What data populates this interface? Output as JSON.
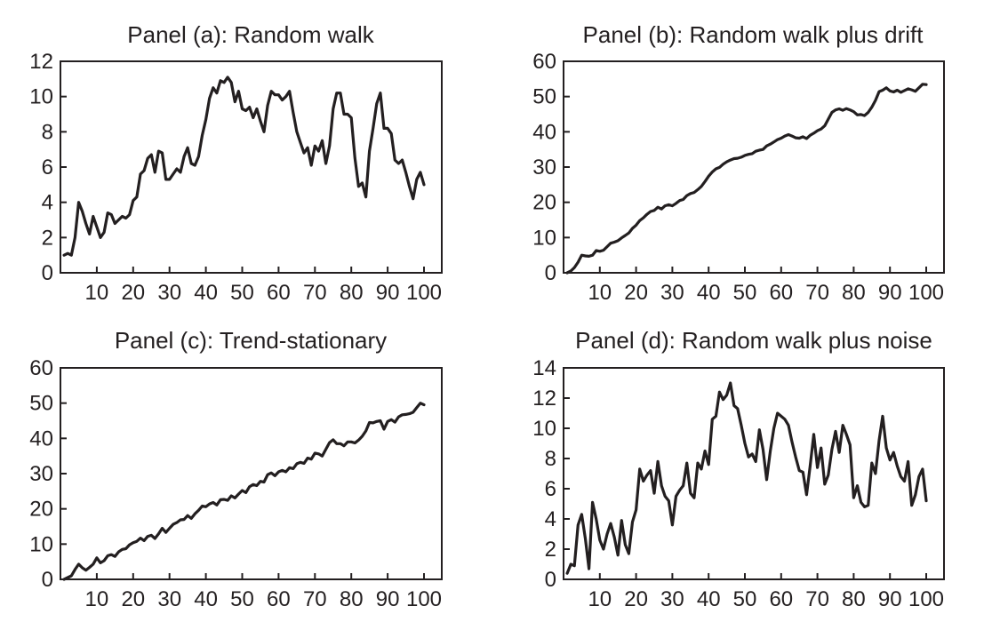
{
  "chart_data": [
    {
      "type": "line",
      "title": "Panel (a): Random walk",
      "xlabel": "",
      "ylabel": "",
      "xlim": [
        0,
        100
      ],
      "ylim": [
        0,
        12
      ],
      "xticks": [
        10,
        20,
        30,
        40,
        50,
        60,
        70,
        80,
        90,
        100
      ],
      "yticks": [
        0,
        2,
        4,
        6,
        8,
        10,
        12
      ],
      "grid": false,
      "x": [
        1,
        2,
        3,
        4,
        5,
        6,
        7,
        8,
        9,
        10,
        11,
        12,
        13,
        14,
        15,
        16,
        17,
        18,
        19,
        20,
        21,
        22,
        23,
        24,
        25,
        26,
        27,
        28,
        29,
        30,
        31,
        32,
        33,
        34,
        35,
        36,
        37,
        38,
        39,
        40,
        41,
        42,
        43,
        44,
        45,
        46,
        47,
        48,
        49,
        50,
        51,
        52,
        53,
        54,
        55,
        56,
        57,
        58,
        59,
        60,
        61,
        62,
        63,
        64,
        65,
        66,
        67,
        68,
        69,
        70,
        71,
        72,
        73,
        74,
        75,
        76,
        77,
        78,
        79,
        80,
        81,
        82,
        83,
        84,
        85,
        86,
        87,
        88,
        89,
        90,
        91,
        92,
        93,
        94,
        95,
        96,
        97,
        98,
        99,
        100
      ],
      "series": [
        {
          "values": [
            1.0,
            1.1,
            1.0,
            2.0,
            4.0,
            3.5,
            2.8,
            2.2,
            3.2,
            2.6,
            2.0,
            2.3,
            3.4,
            3.3,
            2.8,
            3.0,
            3.2,
            3.1,
            3.3,
            4.1,
            4.3,
            5.6,
            5.8,
            6.5,
            6.7,
            5.7,
            6.9,
            6.8,
            5.3,
            5.3,
            5.6,
            5.9,
            5.7,
            6.6,
            7.1,
            6.2,
            6.1,
            6.6,
            7.8,
            8.7,
            9.9,
            10.5,
            10.2,
            10.9,
            10.8,
            11.1,
            10.8,
            9.7,
            10.3,
            9.3,
            9.2,
            9.4,
            8.8,
            9.3,
            8.6,
            8.0,
            9.5,
            10.3,
            10.1,
            10.1,
            9.8,
            10.0,
            10.3,
            9.1,
            8.0,
            7.4,
            6.8,
            7.1,
            6.1,
            7.2,
            6.9,
            7.5,
            6.2,
            7.2,
            9.3,
            10.2,
            10.2,
            9.0,
            9.0,
            8.8,
            6.5,
            4.9,
            5.1,
            4.3,
            6.9,
            8.2,
            9.6,
            10.2,
            8.2,
            8.2,
            7.9,
            6.4,
            6.2,
            6.4,
            5.7,
            4.9,
            4.2,
            5.3,
            5.7,
            5.0
          ]
        }
      ]
    },
    {
      "type": "line",
      "title": "Panel (b): Random walk plus drift",
      "xlabel": "",
      "ylabel": "",
      "xlim": [
        0,
        100
      ],
      "ylim": [
        0,
        60
      ],
      "xticks": [
        10,
        20,
        30,
        40,
        50,
        60,
        70,
        80,
        90,
        100
      ],
      "yticks": [
        0,
        10,
        20,
        30,
        40,
        50,
        60
      ],
      "grid": false,
      "x": [
        1,
        2,
        3,
        4,
        5,
        6,
        7,
        8,
        9,
        10,
        11,
        12,
        13,
        14,
        15,
        16,
        17,
        18,
        19,
        20,
        21,
        22,
        23,
        24,
        25,
        26,
        27,
        28,
        29,
        30,
        31,
        32,
        33,
        34,
        35,
        36,
        37,
        38,
        39,
        40,
        41,
        42,
        43,
        44,
        45,
        46,
        47,
        48,
        49,
        50,
        51,
        52,
        53,
        54,
        55,
        56,
        57,
        58,
        59,
        60,
        61,
        62,
        63,
        64,
        65,
        66,
        67,
        68,
        69,
        70,
        71,
        72,
        73,
        74,
        75,
        76,
        77,
        78,
        79,
        80,
        81,
        82,
        83,
        84,
        85,
        86,
        87,
        88,
        89,
        90,
        91,
        92,
        93,
        94,
        95,
        96,
        97,
        98,
        99,
        100
      ],
      "series": [
        {
          "values": [
            0.0,
            0.5,
            1.5,
            3.0,
            5.0,
            4.8,
            4.7,
            5.0,
            6.3,
            6.1,
            6.4,
            7.4,
            8.4,
            8.7,
            9.1,
            9.9,
            10.6,
            11.3,
            12.6,
            13.5,
            14.8,
            15.6,
            16.6,
            17.4,
            17.7,
            18.6,
            18.1,
            19.0,
            19.3,
            19.0,
            19.7,
            20.5,
            20.8,
            21.9,
            22.5,
            22.8,
            23.6,
            24.5,
            25.9,
            27.4,
            28.6,
            29.5,
            29.9,
            30.8,
            31.5,
            32.0,
            32.4,
            32.5,
            32.8,
            33.3,
            33.6,
            33.8,
            34.5,
            34.8,
            35.0,
            36.0,
            36.5,
            37.1,
            37.8,
            38.2,
            38.8,
            39.2,
            38.8,
            38.3,
            38.2,
            38.6,
            38.1,
            39.0,
            39.6,
            40.3,
            40.8,
            41.7,
            43.6,
            45.5,
            46.2,
            46.5,
            46.1,
            46.6,
            46.2,
            45.7,
            44.8,
            44.9,
            44.6,
            45.5,
            47.0,
            48.9,
            51.4,
            51.8,
            52.5,
            51.6,
            51.3,
            51.8,
            51.2,
            51.7,
            52.2,
            51.9,
            51.5,
            52.5,
            53.5,
            53.4
          ]
        }
      ]
    },
    {
      "type": "line",
      "title": "Panel (c): Trend-stationary",
      "xlabel": "",
      "ylabel": "",
      "xlim": [
        0,
        100
      ],
      "ylim": [
        0,
        60
      ],
      "xticks": [
        10,
        20,
        30,
        40,
        50,
        60,
        70,
        80,
        90,
        100
      ],
      "yticks": [
        0,
        10,
        20,
        30,
        40,
        50,
        60
      ],
      "grid": false,
      "x": [
        1,
        2,
        3,
        4,
        5,
        6,
        7,
        8,
        9,
        10,
        11,
        12,
        13,
        14,
        15,
        16,
        17,
        18,
        19,
        20,
        21,
        22,
        23,
        24,
        25,
        26,
        27,
        28,
        29,
        30,
        31,
        32,
        33,
        34,
        35,
        36,
        37,
        38,
        39,
        40,
        41,
        42,
        43,
        44,
        45,
        46,
        47,
        48,
        49,
        50,
        51,
        52,
        53,
        54,
        55,
        56,
        57,
        58,
        59,
        60,
        61,
        62,
        63,
        64,
        65,
        66,
        67,
        68,
        69,
        70,
        71,
        72,
        73,
        74,
        75,
        76,
        77,
        78,
        79,
        80,
        81,
        82,
        83,
        84,
        85,
        86,
        87,
        88,
        89,
        90,
        91,
        92,
        93,
        94,
        95,
        96,
        97,
        98,
        99,
        100
      ],
      "series": [
        {
          "values": [
            0.0,
            0.5,
            1.0,
            2.8,
            4.3,
            3.3,
            2.6,
            3.4,
            4.3,
            6.1,
            4.7,
            5.3,
            6.7,
            7.0,
            6.5,
            7.8,
            8.5,
            8.7,
            9.8,
            10.4,
            10.8,
            11.7,
            11.0,
            12.2,
            12.5,
            11.6,
            12.9,
            14.5,
            13.3,
            14.5,
            15.6,
            16.1,
            16.9,
            17.0,
            18.1,
            17.3,
            18.6,
            19.6,
            20.8,
            20.6,
            21.4,
            21.8,
            21.1,
            22.6,
            22.7,
            22.4,
            23.7,
            23.1,
            24.2,
            25.2,
            24.6,
            26.3,
            26.9,
            26.6,
            27.8,
            27.6,
            29.7,
            30.2,
            29.4,
            30.5,
            30.9,
            30.5,
            31.7,
            31.4,
            32.8,
            33.2,
            32.9,
            34.4,
            34.1,
            35.8,
            35.6,
            35.0,
            36.9,
            38.8,
            39.6,
            38.5,
            38.5,
            37.9,
            39.0,
            39.0,
            38.7,
            39.5,
            40.6,
            42.1,
            44.5,
            44.4,
            44.8,
            45.0,
            42.6,
            44.8,
            45.3,
            44.6,
            46.1,
            46.7,
            46.8,
            47.0,
            47.4,
            48.7,
            50.0,
            49.5
          ]
        }
      ]
    },
    {
      "type": "line",
      "title": "Panel (d): Random walk plus noise",
      "xlabel": "",
      "ylabel": "",
      "xlim": [
        0,
        100
      ],
      "ylim": [
        0,
        14
      ],
      "xticks": [
        10,
        20,
        30,
        40,
        50,
        60,
        70,
        80,
        90,
        100
      ],
      "yticks": [
        0,
        2,
        4,
        6,
        8,
        10,
        12,
        14
      ],
      "grid": false,
      "x": [
        1,
        2,
        3,
        4,
        5,
        6,
        7,
        8,
        9,
        10,
        11,
        12,
        13,
        14,
        15,
        16,
        17,
        18,
        19,
        20,
        21,
        22,
        23,
        24,
        25,
        26,
        27,
        28,
        29,
        30,
        31,
        32,
        33,
        34,
        35,
        36,
        37,
        38,
        39,
        40,
        41,
        42,
        43,
        44,
        45,
        46,
        47,
        48,
        49,
        50,
        51,
        52,
        53,
        54,
        55,
        56,
        57,
        58,
        59,
        60,
        61,
        62,
        63,
        64,
        65,
        66,
        67,
        68,
        69,
        70,
        71,
        72,
        73,
        74,
        75,
        76,
        77,
        78,
        79,
        80,
        81,
        82,
        83,
        84,
        85,
        86,
        87,
        88,
        89,
        90,
        91,
        92,
        93,
        94,
        95,
        96,
        97,
        98,
        99,
        100
      ],
      "series": [
        {
          "values": [
            0.4,
            1.0,
            0.9,
            3.6,
            4.3,
            2.7,
            0.7,
            5.1,
            4.0,
            2.6,
            2.0,
            3.0,
            3.7,
            2.8,
            1.6,
            3.9,
            2.3,
            1.7,
            3.8,
            4.6,
            7.3,
            6.5,
            6.9,
            7.2,
            5.7,
            7.8,
            6.2,
            5.5,
            5.2,
            3.6,
            5.5,
            5.9,
            6.2,
            7.7,
            5.7,
            5.4,
            7.7,
            7.3,
            8.5,
            7.6,
            10.6,
            10.8,
            12.4,
            11.9,
            12.2,
            13.0,
            11.5,
            11.3,
            10.2,
            9.0,
            8.1,
            8.3,
            7.8,
            9.9,
            8.6,
            6.6,
            8.5,
            10.0,
            11.0,
            10.8,
            10.6,
            10.2,
            9.1,
            8.1,
            7.2,
            7.1,
            5.6,
            7.5,
            9.6,
            7.4,
            8.7,
            6.3,
            6.9,
            8.6,
            9.8,
            8.4,
            10.2,
            9.6,
            8.9,
            5.4,
            6.2,
            5.1,
            4.8,
            4.9,
            7.7,
            7.0,
            9.2,
            10.8,
            8.7,
            7.9,
            8.4,
            7.5,
            6.8,
            6.5,
            7.8,
            4.9,
            5.6,
            6.8,
            7.3,
            5.2
          ]
        }
      ]
    }
  ]
}
